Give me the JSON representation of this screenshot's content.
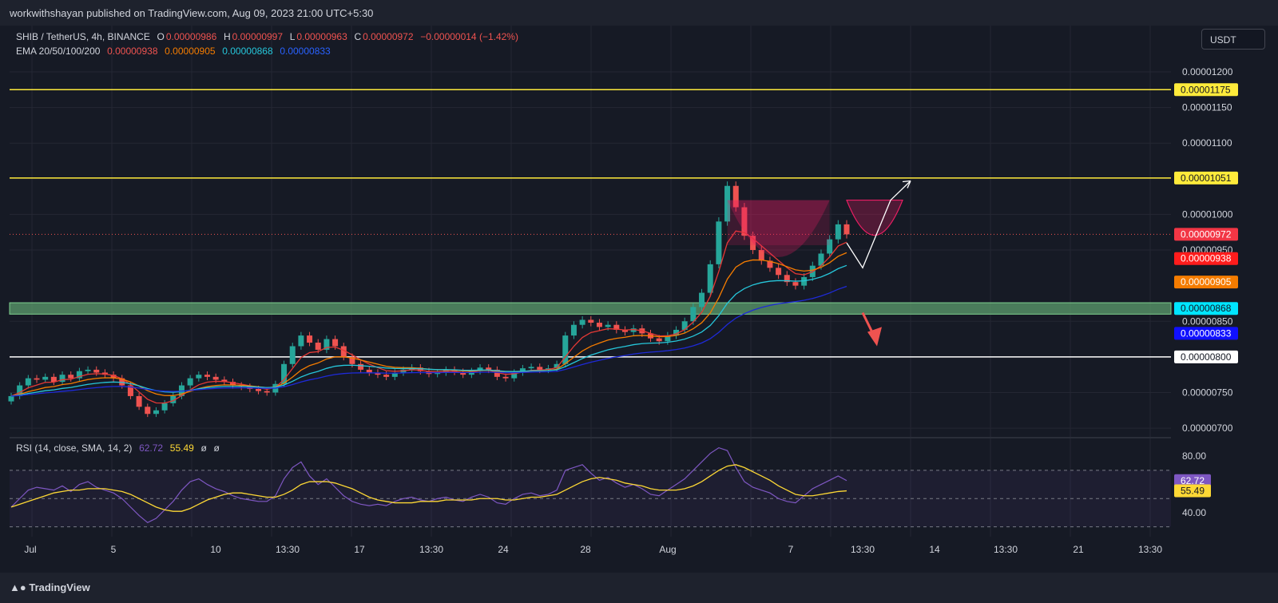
{
  "header": {
    "publisher": "workwithshayan published on TradingView.com, Aug 09, 2023 21:00 UTC+5:30"
  },
  "legend": {
    "symbol": "SHIB / TetherUS, 4h, BINANCE",
    "o_label": "O",
    "o_val": "0.00000986",
    "h_label": "H",
    "h_val": "0.00000997",
    "l_label": "L",
    "l_val": "0.00000963",
    "c_label": "C",
    "c_val": "0.00000972",
    "change": "−0.00000014 (−1.42%)",
    "ema_label": "EMA 20/50/100/200",
    "ema20": "0.00000938",
    "ema50": "0.00000905",
    "ema100": "0.00000868",
    "ema200": "0.00000833"
  },
  "rsi_legend": {
    "label": "RSI (14, close, SMA, 14, 2)",
    "rsi": "62.72",
    "sma": "55.49",
    "x1": "ø",
    "x2": "ø"
  },
  "currency_button": "USDT",
  "footer": {
    "brand": "TradingView"
  },
  "colors": {
    "bg": "#161a25",
    "up": "#26a69a",
    "down": "#ef5350",
    "ema20": "#e53935",
    "ema50": "#f57c00",
    "ema100": "#26c6da",
    "ema200": "#1e2ad8",
    "level": "#ffeb3b",
    "rsi": "#7e57c2",
    "rsi_sma": "#fdd835"
  },
  "chart_data": {
    "type": "candlestick",
    "price_axis": [
      "0.00001200",
      "0.00001150",
      "0.00001100",
      "0.00001000",
      "0.00000950",
      "0.00000850",
      "0.00000750",
      "0.00000700"
    ],
    "price_range": [
      6.9e-06,
      1.265e-05
    ],
    "horizontal_levels": [
      {
        "value": 1.175e-05,
        "label": "0.00001175",
        "color": "#ffeb3b"
      },
      {
        "value": 1.051e-05,
        "label": "0.00001051",
        "color": "#ffeb3b"
      },
      {
        "value": 8e-06,
        "label": "0.00000800",
        "color": "#ffffff"
      }
    ],
    "support_zone": [
      8.6e-06,
      8.76e-06
    ],
    "last_price": {
      "value": 9.72e-06,
      "label": "0.00000972"
    },
    "ema_tags": [
      {
        "value": 9.38e-06,
        "label": "0.00000938",
        "color": "#ff1c1c"
      },
      {
        "value": 9.05e-06,
        "label": "0.00000905",
        "color": "#f57c00"
      },
      {
        "value": 8.68e-06,
        "label": "0.00000868",
        "color": "#00e5ff"
      },
      {
        "value": 8.33e-06,
        "label": "0.00000833",
        "color": "#1010ff"
      }
    ],
    "time_axis": [
      "Jul",
      "5",
      "10",
      "13:30",
      "17",
      "13:30",
      "24",
      "28",
      "Aug",
      "7",
      "13:30",
      "14",
      "13:30",
      "21",
      "13:30"
    ],
    "rsi_axis": [
      "80.00",
      "40.00"
    ],
    "rsi_range": [
      23,
      92
    ],
    "rsi_bands": [
      70,
      50,
      30
    ],
    "rsi_current": {
      "value": 62.72,
      "label": "62.72"
    },
    "rsi_sma_current": {
      "value": 55.49,
      "label": "55.49"
    },
    "closes": [
      7.45e-06,
      7.6e-06,
      7.7e-06,
      7.68e-06,
      7.72e-06,
      7.65e-06,
      7.75e-06,
      7.7e-06,
      7.8e-06,
      7.82e-06,
      7.78e-06,
      7.75e-06,
      7.7e-06,
      7.6e-06,
      7.45e-06,
      7.3e-06,
      7.2e-06,
      7.25e-06,
      7.35e-06,
      7.45e-06,
      7.6e-06,
      7.7e-06,
      7.75e-06,
      7.72e-06,
      7.68e-06,
      7.65e-06,
      7.6e-06,
      7.58e-06,
      7.55e-06,
      7.52e-06,
      7.5e-06,
      7.62e-06,
      7.9e-06,
      8.15e-06,
      8.3e-06,
      8.2e-06,
      8.1e-06,
      8.25e-06,
      8.15e-06,
      8e-06,
      7.9e-06,
      7.82e-06,
      7.78e-06,
      7.75e-06,
      7.72e-06,
      7.78e-06,
      7.82e-06,
      7.85e-06,
      7.8e-06,
      7.76e-06,
      7.78e-06,
      7.82e-06,
      7.79e-06,
      7.75e-06,
      7.8e-06,
      7.85e-06,
      7.82e-06,
      7.72e-06,
      7.7e-06,
      7.78e-06,
      7.84e-06,
      7.86e-06,
      7.82e-06,
      7.84e-06,
      7.9e-06,
      8.3e-06,
      8.45e-06,
      8.52e-06,
      8.48e-06,
      8.42e-06,
      8.45e-06,
      8.38e-06,
      8.35e-06,
      8.4e-06,
      8.33e-06,
      8.26e-06,
      8.22e-06,
      8.3e-06,
      8.38e-06,
      8.5e-06,
      8.7e-06,
      8.9e-06,
      9.3e-06,
      9.9e-06,
      1.04e-05,
      1.01e-05,
      9.7e-06,
      9.5e-06,
      9.35e-06,
      9.25e-06,
      9.15e-06,
      9.05e-06,
      9e-06,
      9.12e-06,
      9.28e-06,
      9.45e-06,
      9.65e-06,
      9.86e-06,
      9.72e-06
    ],
    "rsi": [
      44,
      50,
      56,
      58,
      57,
      56,
      59,
      55,
      60,
      62,
      58,
      56,
      54,
      50,
      44,
      38,
      33,
      36,
      42,
      48,
      56,
      62,
      64,
      60,
      57,
      55,
      52,
      50,
      49,
      48,
      48,
      52,
      64,
      72,
      76,
      66,
      60,
      64,
      58,
      52,
      48,
      46,
      45,
      46,
      45,
      48,
      50,
      51,
      49,
      48,
      50,
      51,
      49,
      48,
      51,
      53,
      51,
      47,
      46,
      50,
      53,
      54,
      52,
      53,
      56,
      70,
      72,
      74,
      68,
      63,
      65,
      61,
      58,
      60,
      57,
      53,
      52,
      56,
      60,
      64,
      70,
      76,
      82,
      86,
      84,
      72,
      62,
      58,
      56,
      54,
      50,
      48,
      47,
      52,
      57,
      60,
      63,
      66,
      62.72
    ],
    "rsi_sma": [
      44,
      46,
      48,
      50,
      52,
      54,
      55,
      56,
      56,
      57,
      57,
      57,
      56,
      55,
      53,
      50,
      47,
      44,
      42,
      41,
      41,
      43,
      46,
      49,
      51,
      53,
      54,
      54,
      53,
      52,
      51,
      51,
      53,
      56,
      60,
      62,
      62,
      62,
      61,
      59,
      57,
      54,
      51,
      49,
      48,
      47,
      47,
      47,
      48,
      48,
      48,
      49,
      49,
      49,
      49,
      50,
      50,
      50,
      49,
      49,
      50,
      51,
      51,
      52,
      53,
      56,
      59,
      62,
      64,
      65,
      64,
      63,
      61,
      60,
      59,
      57,
      56,
      56,
      56,
      57,
      59,
      62,
      66,
      70,
      73,
      74,
      72,
      69,
      66,
      63,
      59,
      56,
      53,
      52,
      52,
      53,
      54,
      55,
      55.49
    ]
  }
}
